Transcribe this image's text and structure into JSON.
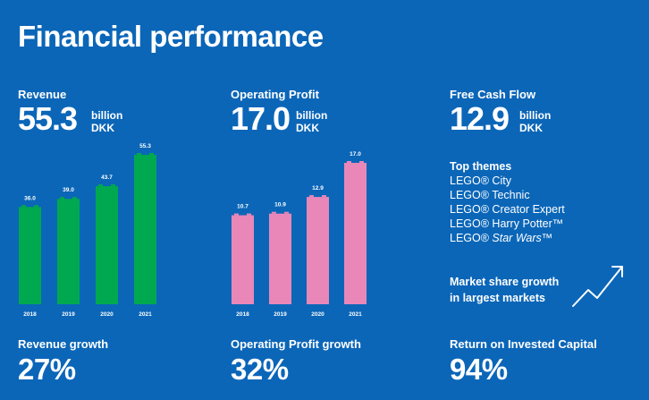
{
  "title": "Financial performance",
  "revenue": {
    "label": "Revenue",
    "value": "55.3",
    "unit_line1": "billion",
    "unit_line2": "DKK"
  },
  "operating_profit": {
    "label": "Operating Profit",
    "value": "17.0",
    "unit_line1": "billion",
    "unit_line2": "DKK"
  },
  "free_cash_flow": {
    "label": "Free Cash Flow",
    "value": "12.9",
    "unit_line1": "billion",
    "unit_line2": "DKK"
  },
  "top_themes": {
    "title": "Top themes",
    "items": [
      {
        "prefix": "LEGO® City",
        "italic": ""
      },
      {
        "prefix": "LEGO® Technic",
        "italic": ""
      },
      {
        "prefix": "LEGO® Creator Expert",
        "italic": ""
      },
      {
        "prefix": "LEGO® Harry Potter™",
        "italic": ""
      },
      {
        "prefix": "LEGO® ",
        "italic": "Star Wars™"
      }
    ]
  },
  "market_share": {
    "line1": "Market share growth",
    "line2": "in largest markets"
  },
  "bottom": {
    "revenue_growth": {
      "label": "Revenue growth",
      "value": "27%"
    },
    "op_profit_growth": {
      "label": "Operating Profit growth",
      "value": "32%"
    },
    "roic": {
      "label": "Return on Invested Capital",
      "value": "94%"
    }
  },
  "colors": {
    "background": "#0b66b8",
    "revenue_bar": "#00a94f",
    "profit_bar": "#e987b8"
  },
  "chart_data": [
    {
      "type": "bar",
      "title": "Revenue",
      "categories": [
        "2018",
        "2019",
        "2020",
        "2021"
      ],
      "values": [
        36.0,
        39.0,
        43.7,
        55.3
      ],
      "value_labels": [
        "36.0",
        "39.0",
        "43.7",
        "55.3"
      ],
      "ylim": [
        0,
        55.3
      ],
      "xlabel": "",
      "ylabel": ""
    },
    {
      "type": "bar",
      "title": "Operating Profit",
      "categories": [
        "2018",
        "2019",
        "2020",
        "2021"
      ],
      "values": [
        10.7,
        10.9,
        12.9,
        17.0
      ],
      "value_labels": [
        "10.7",
        "10.9",
        "12.9",
        "17.0"
      ],
      "ylim": [
        0,
        17.0
      ],
      "xlabel": "",
      "ylabel": ""
    }
  ]
}
